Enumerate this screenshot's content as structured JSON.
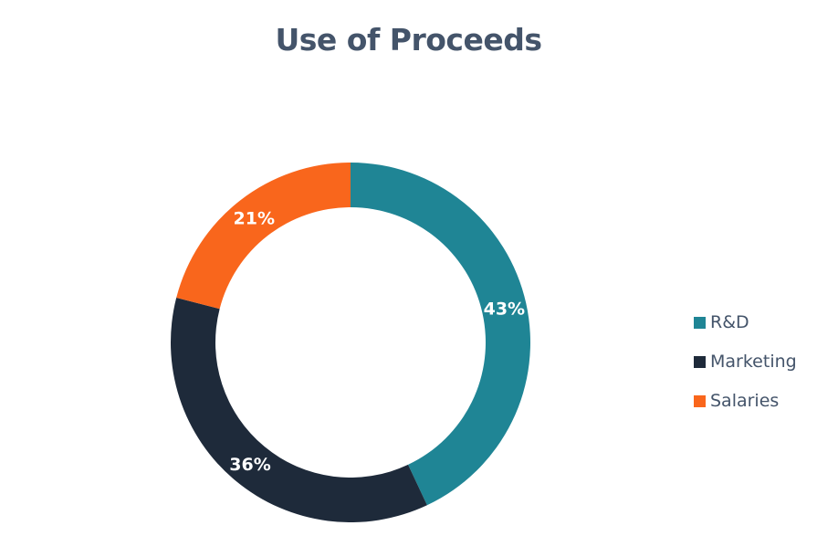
{
  "chart_data": {
    "type": "pie",
    "variant": "donut",
    "title": "Use of Proceeds",
    "categories": [
      "R&D",
      "Marketing",
      "Salaries"
    ],
    "values": [
      43,
      36,
      21
    ],
    "labels": [
      "43%",
      "36%",
      "21%"
    ],
    "colors": [
      "#1f8595",
      "#1e2a3a",
      "#f9661c"
    ],
    "start_angle": "12 o'clock",
    "direction": "clockwise",
    "legend_position": "right"
  },
  "title": "Use of Proceeds",
  "legend": [
    {
      "label": "R&D",
      "color": "#1f8595"
    },
    {
      "label": "Marketing",
      "color": "#1e2a3a"
    },
    {
      "label": "Salaries",
      "color": "#f9661c"
    }
  ],
  "data_labels": [
    "43%",
    "36%",
    "21%"
  ]
}
